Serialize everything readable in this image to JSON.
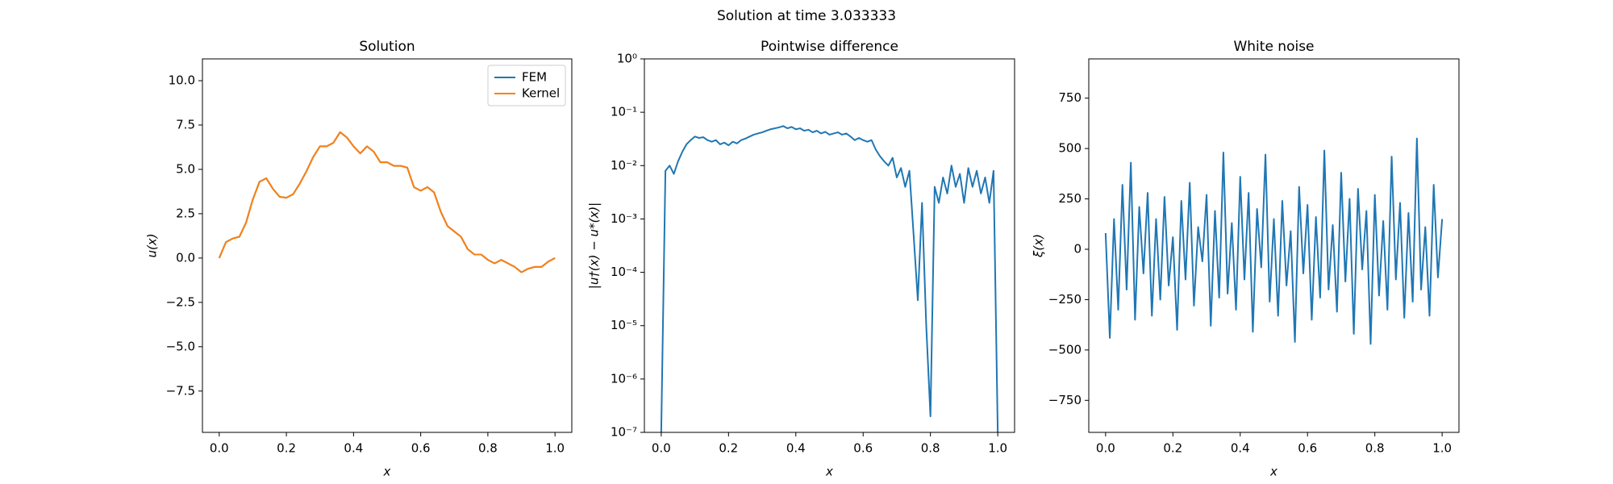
{
  "title": "Solution at time 3.033333",
  "chart_data": [
    {
      "type": "line",
      "title": "Solution",
      "x_label": "x",
      "y_label": "u(x)",
      "xlim": [
        -0.05,
        1.05
      ],
      "ylim": [
        -9.83,
        11.23
      ],
      "xticks": [
        {
          "value": 0,
          "label": "0.0"
        },
        0.2,
        0.4,
        0.6,
        0.8,
        {
          "value": 1,
          "label": "1.0"
        }
      ],
      "yticks": [
        {
          "value": -7.5,
          "label": "−7.5"
        },
        {
          "value": -5,
          "label": "−5.0"
        },
        {
          "value": -2.5,
          "label": "−2.5"
        },
        {
          "value": 0,
          "label": "0.0"
        },
        {
          "value": 2.5,
          "label": "2.5"
        },
        {
          "value": 5,
          "label": "5.0"
        },
        {
          "value": 7.5,
          "label": "7.5"
        },
        {
          "value": 10,
          "label": "10.0"
        }
      ],
      "legend": "upper right",
      "x": [
        0,
        0.02,
        0.04,
        0.06,
        0.08,
        0.1,
        0.12,
        0.14,
        0.16,
        0.18,
        0.2,
        0.22,
        0.24,
        0.26,
        0.28,
        0.3,
        0.32,
        0.34,
        0.36,
        0.38,
        0.4,
        0.42,
        0.44,
        0.46,
        0.48,
        0.5,
        0.52,
        0.54,
        0.56,
        0.58,
        0.6,
        0.62,
        0.64,
        0.66,
        0.68,
        0.7,
        0.72,
        0.74,
        0.76,
        0.78,
        0.8,
        0.82,
        0.84,
        0.86,
        0.88,
        0.9,
        0.92,
        0.94,
        0.96,
        0.98,
        1.0
      ],
      "series": [
        {
          "name": "FEM",
          "color": "#1f77b4",
          "values": [
            0,
            0.9,
            1.1,
            1.2,
            2.0,
            3.3,
            4.3,
            4.5,
            3.9,
            3.45,
            3.4,
            3.6,
            4.2,
            4.9,
            5.7,
            6.3,
            6.3,
            6.5,
            7.1,
            6.8,
            6.3,
            5.9,
            6.3,
            6.0,
            5.4,
            5.4,
            5.2,
            5.2,
            5.1,
            4.0,
            3.8,
            4.0,
            3.7,
            2.6,
            1.8,
            1.5,
            1.2,
            0.5,
            0.2,
            0.2,
            -0.1,
            -0.3,
            -0.1,
            -0.3,
            -0.5,
            -0.8,
            -0.6,
            -0.5,
            -0.5,
            -0.2,
            0
          ]
        },
        {
          "name": "Kernel",
          "color": "#ff7f0e",
          "values": [
            0,
            0.9,
            1.1,
            1.2,
            2.0,
            3.3,
            4.3,
            4.5,
            3.9,
            3.45,
            3.4,
            3.6,
            4.2,
            4.9,
            5.7,
            6.3,
            6.3,
            6.5,
            7.1,
            6.8,
            6.3,
            5.9,
            6.3,
            6.0,
            5.4,
            5.4,
            5.2,
            5.2,
            5.1,
            4.0,
            3.8,
            4.0,
            3.7,
            2.6,
            1.8,
            1.5,
            1.2,
            0.5,
            0.2,
            0.2,
            -0.1,
            -0.3,
            -0.1,
            -0.3,
            -0.5,
            -0.8,
            -0.6,
            -0.5,
            -0.5,
            -0.2,
            0
          ]
        }
      ]
    },
    {
      "type": "line",
      "title": "Pointwise difference",
      "x_label": "x",
      "y_label": "|u†(x) − u*(x)|",
      "log_y": true,
      "xlim": [
        -0.05,
        1.05
      ],
      "ylim": [
        1e-07,
        1
      ],
      "xticks": [
        {
          "value": 0,
          "label": "0.0"
        },
        0.2,
        0.4,
        0.6,
        0.8,
        {
          "value": 1,
          "label": "1.0"
        }
      ],
      "yticks": [
        {
          "value": 1e-07,
          "label": "10⁻⁷"
        },
        {
          "value": 1e-06,
          "label": "10⁻⁶"
        },
        {
          "value": 1e-05,
          "label": "10⁻⁵"
        },
        {
          "value": 0.0001,
          "label": "10⁻⁴"
        },
        {
          "value": 0.001,
          "label": "10⁻³"
        },
        {
          "value": 0.01,
          "label": "10⁻²"
        },
        {
          "value": 0.1,
          "label": "10⁻¹"
        },
        {
          "value": 1,
          "label": "10⁰"
        }
      ],
      "color": "#1f77b4",
      "x": [
        0,
        0.0125,
        0.025,
        0.0375,
        0.05,
        0.0625,
        0.075,
        0.0875,
        0.1,
        0.1125,
        0.125,
        0.1375,
        0.15,
        0.1625,
        0.175,
        0.1875,
        0.2,
        0.2125,
        0.225,
        0.2375,
        0.25,
        0.2625,
        0.275,
        0.2875,
        0.3,
        0.3125,
        0.325,
        0.3375,
        0.35,
        0.3625,
        0.375,
        0.3875,
        0.4,
        0.4125,
        0.425,
        0.4375,
        0.45,
        0.4625,
        0.475,
        0.4875,
        0.5,
        0.5125,
        0.525,
        0.5375,
        0.55,
        0.5625,
        0.575,
        0.5875,
        0.6,
        0.6125,
        0.625,
        0.6375,
        0.65,
        0.6625,
        0.675,
        0.6875,
        0.7,
        0.7125,
        0.725,
        0.7375,
        0.75,
        0.7625,
        0.775,
        0.7875,
        0.8,
        0.8125,
        0.825,
        0.8375,
        0.85,
        0.8625,
        0.875,
        0.8875,
        0.9,
        0.9125,
        0.925,
        0.9375,
        0.95,
        0.9625,
        0.975,
        0.9875,
        1.0
      ],
      "values": [
        1e-07,
        0.008,
        0.01,
        0.007,
        0.012,
        0.018,
        0.025,
        0.03,
        0.035,
        0.033,
        0.034,
        0.03,
        0.028,
        0.03,
        0.025,
        0.027,
        0.024,
        0.028,
        0.026,
        0.03,
        0.032,
        0.035,
        0.038,
        0.04,
        0.042,
        0.045,
        0.048,
        0.05,
        0.052,
        0.055,
        0.05,
        0.053,
        0.048,
        0.05,
        0.045,
        0.047,
        0.042,
        0.045,
        0.04,
        0.043,
        0.038,
        0.04,
        0.042,
        0.038,
        0.04,
        0.035,
        0.03,
        0.033,
        0.03,
        0.028,
        0.03,
        0.02,
        0.015,
        0.012,
        0.01,
        0.014,
        0.006,
        0.009,
        0.004,
        0.008,
        0.0005,
        3e-05,
        0.002,
        1e-05,
        2e-07,
        0.004,
        0.002,
        0.006,
        0.003,
        0.01,
        0.004,
        0.007,
        0.002,
        0.009,
        0.004,
        0.008,
        0.003,
        0.006,
        0.002,
        0.008,
        1e-07
      ]
    },
    {
      "type": "line",
      "title": "White noise",
      "x_label": "x",
      "y_label": "ξ(x)",
      "xlim": [
        -0.05,
        1.05
      ],
      "ylim": [
        -909,
        945
      ],
      "xticks": [
        {
          "value": 0,
          "label": "0.0"
        },
        0.2,
        0.4,
        0.6,
        0.8,
        {
          "value": 1,
          "label": "1.0"
        }
      ],
      "yticks": [
        {
          "value": -750,
          "label": "−750"
        },
        {
          "value": -500,
          "label": "−500"
        },
        {
          "value": -250,
          "label": "−250"
        },
        0,
        250,
        500,
        750
      ],
      "color": "#1f77b4",
      "x": [
        0,
        0.0125,
        0.025,
        0.0375,
        0.05,
        0.0625,
        0.075,
        0.0875,
        0.1,
        0.1125,
        0.125,
        0.1375,
        0.15,
        0.1625,
        0.175,
        0.1875,
        0.2,
        0.2125,
        0.225,
        0.2375,
        0.25,
        0.2625,
        0.275,
        0.2875,
        0.3,
        0.3125,
        0.325,
        0.3375,
        0.35,
        0.3625,
        0.375,
        0.3875,
        0.4,
        0.4125,
        0.425,
        0.4375,
        0.45,
        0.4625,
        0.475,
        0.4875,
        0.5,
        0.5125,
        0.525,
        0.5375,
        0.55,
        0.5625,
        0.575,
        0.5875,
        0.6,
        0.6125,
        0.625,
        0.6375,
        0.65,
        0.6625,
        0.675,
        0.6875,
        0.7,
        0.7125,
        0.725,
        0.7375,
        0.75,
        0.7625,
        0.775,
        0.7875,
        0.8,
        0.8125,
        0.825,
        0.8375,
        0.85,
        0.8625,
        0.875,
        0.8875,
        0.9,
        0.9125,
        0.925,
        0.9375,
        0.95,
        0.9625,
        0.975,
        0.9875,
        1.0
      ],
      "values": [
        80,
        -440,
        150,
        -300,
        320,
        -200,
        430,
        -350,
        210,
        -120,
        280,
        -330,
        150,
        -250,
        260,
        -180,
        60,
        -400,
        240,
        -150,
        330,
        -280,
        110,
        -60,
        270,
        -380,
        190,
        -240,
        480,
        -220,
        130,
        -300,
        360,
        -150,
        280,
        -410,
        200,
        -90,
        470,
        -260,
        150,
        -330,
        240,
        -180,
        90,
        -460,
        310,
        -120,
        220,
        -350,
        160,
        -240,
        490,
        -200,
        120,
        -310,
        380,
        -160,
        250,
        -420,
        300,
        -100,
        190,
        -470,
        270,
        -230,
        140,
        -300,
        460,
        -150,
        230,
        -340,
        180,
        -260,
        550,
        -200,
        110,
        -330,
        320,
        -140,
        150
      ]
    }
  ]
}
